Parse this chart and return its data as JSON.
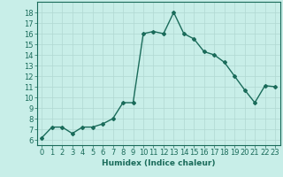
{
  "x": [
    0,
    1,
    2,
    3,
    4,
    5,
    6,
    7,
    8,
    9,
    10,
    11,
    12,
    13,
    14,
    15,
    16,
    17,
    18,
    19,
    20,
    21,
    22,
    23
  ],
  "y": [
    6.2,
    7.2,
    7.2,
    6.6,
    7.2,
    7.2,
    7.5,
    8.0,
    9.5,
    9.5,
    16.0,
    16.2,
    16.0,
    18.0,
    16.0,
    15.5,
    14.3,
    14.0,
    13.3,
    12.0,
    10.7,
    9.5,
    11.1,
    11.0
  ],
  "line_color": "#1a6b5a",
  "marker": "D",
  "markersize": 2.0,
  "linewidth": 1.0,
  "bg_color": "#c8eee8",
  "grid_color": "#b0d8d2",
  "xlabel": "Humidex (Indice chaleur)",
  "xlim": [
    -0.5,
    23.5
  ],
  "ylim": [
    5.5,
    19
  ],
  "yticks": [
    6,
    7,
    8,
    9,
    10,
    11,
    12,
    13,
    14,
    15,
    16,
    17,
    18
  ],
  "xticks": [
    0,
    1,
    2,
    3,
    4,
    5,
    6,
    7,
    8,
    9,
    10,
    11,
    12,
    13,
    14,
    15,
    16,
    17,
    18,
    19,
    20,
    21,
    22,
    23
  ],
  "xlabel_fontsize": 6.5,
  "tick_fontsize": 6.0
}
